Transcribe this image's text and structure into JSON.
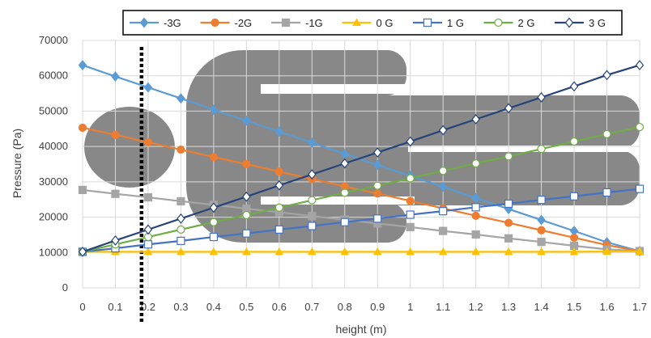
{
  "chart_data": {
    "type": "line",
    "xlabel": "height (m)",
    "ylabel": "Pressure (Pa)",
    "x": [
      0,
      0.1,
      0.2,
      0.3,
      0.4,
      0.5,
      0.6,
      0.7,
      0.8,
      0.9,
      1,
      1.1,
      1.2,
      1.3,
      1.4,
      1.5,
      1.6,
      1.7
    ],
    "x_tick_labels": [
      "0",
      "0.1",
      "0.2",
      "0.3",
      "0.4",
      "0.5",
      "0.6",
      "0.7",
      "0.8",
      "0.9",
      "1",
      "1.1",
      "1.2",
      "1.3",
      "1.4",
      "1.5",
      "1.6",
      "1.7"
    ],
    "xlim": [
      0,
      1.7
    ],
    "ylim": [
      0,
      70000
    ],
    "y_ticks": [
      0,
      10000,
      20000,
      30000,
      40000,
      50000,
      60000,
      70000
    ],
    "grid": true,
    "legend_position": "top",
    "series": [
      {
        "name": "-3G",
        "color": "#5B9BD5",
        "marker": "diamond-filled",
        "values": [
          63000,
          59800,
          56700,
          53600,
          50400,
          47300,
          44200,
          41100,
          37900,
          34800,
          31700,
          28600,
          25400,
          22300,
          19200,
          16100,
          12900,
          10400
        ]
      },
      {
        "name": "-2G",
        "color": "#ED7D31",
        "marker": "circle-filled",
        "values": [
          45300,
          43300,
          41200,
          39100,
          37000,
          35000,
          32900,
          30800,
          28700,
          26700,
          24600,
          22500,
          20400,
          18400,
          16300,
          14200,
          12100,
          10400
        ]
      },
      {
        "name": "-1G",
        "color": "#A5A5A5",
        "marker": "square-filled",
        "values": [
          27700,
          26600,
          25600,
          24500,
          23500,
          22400,
          21400,
          20300,
          19300,
          18200,
          17200,
          16100,
          15100,
          14000,
          13000,
          11900,
          10900,
          10400
        ]
      },
      {
        "name": "0 G",
        "color": "#FFC000",
        "marker": "triangle-filled",
        "values": [
          10200,
          10200,
          10200,
          10200,
          10200,
          10200,
          10200,
          10200,
          10200,
          10200,
          10200,
          10200,
          10200,
          10200,
          10200,
          10200,
          10300,
          10300
        ]
      },
      {
        "name": "1 G",
        "color": "#4472C4",
        "marker": "square-open",
        "values": [
          10200,
          11200,
          12300,
          13300,
          14400,
          15400,
          16500,
          17500,
          18600,
          19600,
          20700,
          21700,
          22800,
          23800,
          24900,
          25900,
          27000,
          28000
        ]
      },
      {
        "name": "2 G",
        "color": "#70AD47",
        "marker": "circle-open",
        "values": [
          10200,
          12300,
          14400,
          16500,
          18600,
          20600,
          22700,
          24800,
          26900,
          28900,
          31000,
          33100,
          35200,
          37200,
          39300,
          41400,
          43500,
          45500
        ]
      },
      {
        "name": "3 G",
        "color": "#264478",
        "marker": "diamond-open",
        "values": [
          10200,
          13400,
          16500,
          19600,
          22700,
          25800,
          29000,
          32100,
          35200,
          38300,
          41400,
          44600,
          47700,
          50800,
          53900,
          57000,
          60200,
          63000
        ]
      }
    ],
    "reference_line": {
      "x": 0.18,
      "style": "dotted",
      "color": "#000000"
    },
    "background_figure": {
      "description_color": "#808080"
    }
  }
}
